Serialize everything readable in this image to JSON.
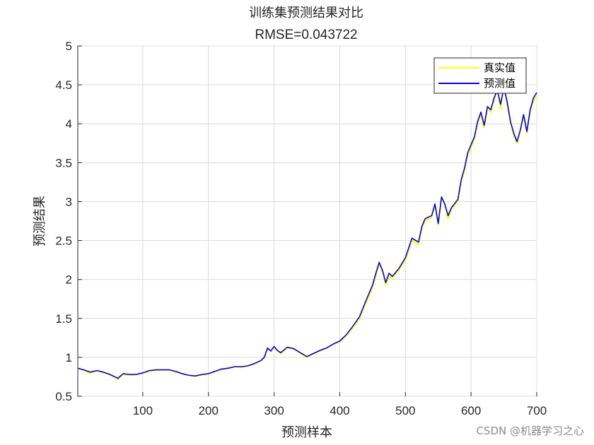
{
  "chart_data": {
    "type": "line",
    "title": "训练集预测结果对比",
    "subtitle": "RMSE=0.043722",
    "xlabel": "预测样本",
    "ylabel": "预测结果",
    "xlim": [
      1,
      700
    ],
    "ylim": [
      0.5,
      5
    ],
    "xticks": [
      100,
      200,
      300,
      400,
      500,
      600,
      700
    ],
    "yticks": [
      0.5,
      1,
      1.5,
      2,
      2.5,
      3,
      3.5,
      4,
      4.5,
      5
    ],
    "grid": true,
    "legend_position": "top-right",
    "x": [
      1,
      10,
      20,
      30,
      40,
      50,
      60,
      62,
      70,
      80,
      90,
      100,
      110,
      120,
      130,
      140,
      150,
      160,
      170,
      180,
      190,
      200,
      210,
      220,
      230,
      240,
      250,
      260,
      270,
      280,
      285,
      290,
      295,
      300,
      305,
      310,
      320,
      330,
      340,
      350,
      360,
      370,
      380,
      390,
      400,
      410,
      420,
      430,
      440,
      450,
      455,
      460,
      465,
      470,
      475,
      480,
      490,
      500,
      510,
      520,
      525,
      530,
      540,
      545,
      550,
      555,
      560,
      565,
      570,
      580,
      585,
      590,
      595,
      600,
      605,
      610,
      615,
      620,
      625,
      630,
      635,
      640,
      645,
      650,
      655,
      660,
      665,
      670,
      675,
      680,
      685,
      690,
      695,
      700
    ],
    "series": [
      {
        "name": "真实值",
        "color": "#ffff00",
        "values": [
          0.86,
          0.83,
          0.8,
          0.83,
          0.8,
          0.78,
          0.73,
          0.72,
          0.78,
          0.77,
          0.78,
          0.8,
          0.82,
          0.83,
          0.84,
          0.84,
          0.81,
          0.79,
          0.77,
          0.76,
          0.77,
          0.79,
          0.82,
          0.84,
          0.86,
          0.88,
          0.87,
          0.89,
          0.92,
          0.95,
          1.0,
          1.1,
          1.09,
          1.13,
          1.08,
          1.05,
          1.12,
          1.12,
          1.05,
          1.0,
          1.05,
          1.08,
          1.12,
          1.17,
          1.2,
          1.28,
          1.38,
          1.5,
          1.7,
          1.9,
          2.05,
          2.2,
          2.1,
          1.93,
          2.05,
          2.02,
          2.12,
          2.25,
          2.5,
          2.45,
          2.65,
          2.75,
          2.8,
          2.95,
          2.7,
          3.05,
          2.95,
          2.78,
          2.9,
          3.0,
          3.25,
          3.4,
          3.6,
          3.7,
          3.8,
          4.0,
          4.12,
          3.95,
          4.2,
          4.15,
          4.3,
          4.45,
          4.2,
          4.5,
          4.25,
          4.0,
          3.85,
          3.75,
          3.9,
          4.1,
          3.88,
          4.15,
          4.3,
          4.35
        ]
      },
      {
        "name": "预测值",
        "color": "#0000ff",
        "values": [
          0.86,
          0.84,
          0.81,
          0.83,
          0.81,
          0.78,
          0.74,
          0.73,
          0.79,
          0.78,
          0.78,
          0.8,
          0.83,
          0.84,
          0.84,
          0.84,
          0.82,
          0.79,
          0.77,
          0.76,
          0.78,
          0.79,
          0.82,
          0.85,
          0.86,
          0.88,
          0.88,
          0.89,
          0.92,
          0.96,
          1.0,
          1.12,
          1.08,
          1.14,
          1.09,
          1.06,
          1.13,
          1.11,
          1.06,
          1.01,
          1.05,
          1.09,
          1.12,
          1.17,
          1.21,
          1.29,
          1.4,
          1.52,
          1.73,
          1.93,
          2.08,
          2.22,
          2.12,
          1.96,
          2.08,
          2.04,
          2.14,
          2.28,
          2.53,
          2.48,
          2.68,
          2.78,
          2.82,
          2.97,
          2.72,
          3.06,
          2.97,
          2.82,
          2.92,
          3.03,
          3.28,
          3.43,
          3.63,
          3.73,
          3.83,
          4.03,
          4.15,
          3.98,
          4.22,
          4.18,
          4.33,
          4.43,
          4.25,
          4.47,
          4.28,
          4.03,
          3.88,
          3.77,
          3.92,
          4.12,
          3.9,
          4.18,
          4.33,
          4.4
        ]
      }
    ]
  },
  "watermark": "CSDN @机器学习之心"
}
